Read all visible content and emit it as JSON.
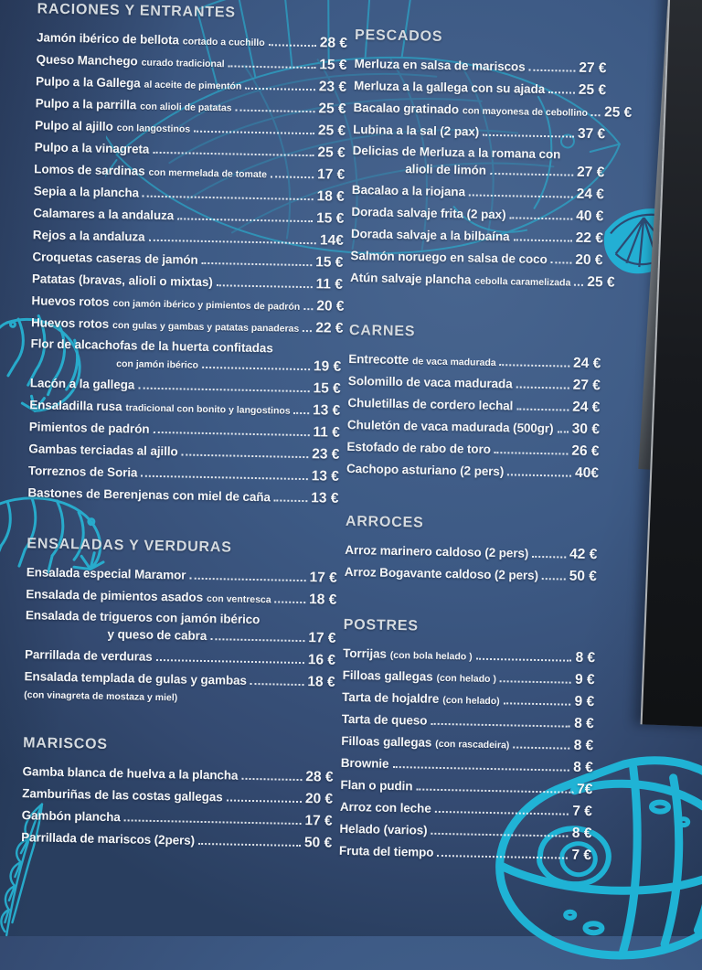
{
  "page_title": "Carta Maramor - menú",
  "colors": {
    "accent_cyan": "#23b7d8",
    "board_navy": "#3d5a85",
    "text_white": "#f4f6f8",
    "heading_grey": "#d5dbe0",
    "edge_dark": "#1a1c20",
    "edge_light": "#c3c7cb"
  },
  "decorations": {
    "illustrations": [
      "fish-illustration",
      "lemon-slice-illustration",
      "shrimp-illustration-upper",
      "shrimp-illustration-lower",
      "feather-illustration",
      "cake-illustration"
    ]
  },
  "columns": {
    "left": [
      {
        "title": "RACIONES Y ENTRANTES",
        "items": [
          {
            "name": "Jamón ibérico de bellota",
            "detail": "cortado a cuchillo",
            "price": "28 €"
          },
          {
            "name": "Queso Manchego",
            "detail": "curado tradicional",
            "price": "15 €"
          },
          {
            "name": "Pulpo a la Gallega",
            "detail": "al aceite de pimentón",
            "price": "23 €"
          },
          {
            "name": "Pulpo a la parrilla",
            "detail": "con alioli de patatas",
            "price": "25 €"
          },
          {
            "name": "Pulpo al ajillo",
            "detail": "con langostinos",
            "price": "25 €"
          },
          {
            "name": "Pulpo a la vinagreta",
            "price": "25 €"
          },
          {
            "name": "Lomos de sardinas",
            "detail": "con mermelada de tomate",
            "price": "17 €"
          },
          {
            "name": "Sepia a la plancha",
            "price": "18 €"
          },
          {
            "name": "Calamares a la andaluza",
            "price": "15 €"
          },
          {
            "name": "Rejos a la andaluza",
            "price": "14€"
          },
          {
            "name": "Croquetas caseras de jamón",
            "price": "15 €"
          },
          {
            "name": "Patatas (bravas, alioli o mixtas)",
            "price": "11 €"
          },
          {
            "name": "Huevos rotos",
            "detail": "con jamón ibérico y pimientos de padrón",
            "price": "20 €"
          },
          {
            "name": "Huevos rotos",
            "detail": "con gulas y gambas y patatas panaderas",
            "price": "22 €"
          },
          {
            "pre": "Flor de alcachofas de la huerta confitadas",
            "name": "con jamón ibérico",
            "small": true,
            "indent": "indent-big",
            "price": "19 €"
          },
          {
            "name": "Lacón a la gallega",
            "price": "15 €"
          },
          {
            "name": "Ensaladilla rusa",
            "detail": "tradicional con bonito y langostinos",
            "price": "13 €"
          },
          {
            "name": "Pimientos de padrón",
            "price": "11 €"
          },
          {
            "name": "Gambas terciadas al ajillo",
            "price": "23 €"
          },
          {
            "name": "Torreznos de Soria",
            "price": "13 €"
          },
          {
            "name": "Bastones de Berenjenas con miel de caña",
            "price": "13 €"
          }
        ]
      },
      {
        "title": "ENSALADAS Y VERDURAS",
        "items": [
          {
            "name": "Ensalada especial Maramor",
            "price": "17 €"
          },
          {
            "name": "Ensalada de pimientos asados",
            "detail": "con ventresca",
            "price": "18 €"
          },
          {
            "pre": "Ensalada de trigueros con jamón ibérico",
            "name": "y queso de cabra",
            "indent": "indent-big",
            "price": "17 €"
          },
          {
            "name": "Parrillada de verduras",
            "price": "16 €"
          },
          {
            "name": "Ensalada templada de gulas y gambas",
            "price": "18 €",
            "post": "(con vinagreta de mostaza y miel)"
          }
        ]
      },
      {
        "title": "MARISCOS",
        "items": [
          {
            "name": "Gamba blanca de huelva a la plancha",
            "price": "28 €"
          },
          {
            "name": "Zamburiñas de las costas gallegas",
            "price": "20 €"
          },
          {
            "name": "Gambón plancha",
            "price": "17 €"
          },
          {
            "name": "Parrillada de mariscos (2pers)",
            "price": "50 €"
          }
        ]
      }
    ],
    "right": [
      {
        "title": "PESCADOS",
        "items": [
          {
            "name": "Merluza en salsa de mariscos",
            "price": "27 €"
          },
          {
            "name": "Merluza a la gallega con su ajada",
            "price": "25 €"
          },
          {
            "name": "Bacalao gratinado",
            "detail": "con mayonesa de cebollino",
            "price": "25 €"
          },
          {
            "name": "Lubina a la sal (2 pax)",
            "price": "37 €"
          },
          {
            "pre": "Delicias de Merluza a la romana con",
            "name": "alioli de limón",
            "indent": "indent",
            "price": "27 €"
          },
          {
            "name": "Bacalao a la riojana",
            "price": "24 €"
          },
          {
            "name": "Dorada salvaje frita (2 pax)",
            "price": "40 €"
          },
          {
            "name": "Dorada salvaje a la bilbaína",
            "price": "22 €"
          },
          {
            "name": "Salmón noruego en salsa de coco",
            "price": "20 €"
          },
          {
            "name": "Atún salvaje plancha",
            "detail": "cebolla caramelizada",
            "price": "25 €"
          }
        ]
      },
      {
        "title": "CARNES",
        "items": [
          {
            "name": "Entrecotte",
            "detail": "de vaca madurada",
            "price": "24 €"
          },
          {
            "name": "Solomillo de vaca madurada",
            "price": "27 €"
          },
          {
            "name": "Chuletillas de cordero lechal",
            "price": "24 €"
          },
          {
            "name": "Chuletón de vaca madurada (500gr)",
            "price": "30 €"
          },
          {
            "name": "Estofado de rabo de toro",
            "price": "26 €"
          },
          {
            "name": "Cachopo asturiano (2 pers)",
            "price": "40€"
          }
        ]
      },
      {
        "title": "ARROCES",
        "items": [
          {
            "name": "Arroz marinero caldoso (2 pers)",
            "price": "42 €"
          },
          {
            "name": "Arroz Bogavante caldoso (2 pers)",
            "price": "50 €"
          }
        ]
      },
      {
        "title": "POSTRES",
        "items": [
          {
            "name": "Torrijas",
            "detail": "(con bola helado )",
            "price": "8 €"
          },
          {
            "name": "Filloas gallegas",
            "detail": "(con helado )",
            "price": "9 €"
          },
          {
            "name": "Tarta de hojaldre",
            "detail": "(con helado)",
            "price": "9 €"
          },
          {
            "name": "Tarta de queso",
            "price": "8 €"
          },
          {
            "name": "Filloas gallegas",
            "detail": "(con rascadeira)",
            "price": "8 €"
          },
          {
            "name": "Brownie",
            "price": "8 €"
          },
          {
            "name": "Flan o pudin",
            "price": "7€"
          },
          {
            "name": "Arroz con leche",
            "price": "7 €"
          },
          {
            "name": "Helado (varios)",
            "price": "8 €"
          },
          {
            "name": "Fruta del tiempo",
            "price": "7 €"
          }
        ]
      }
    ]
  }
}
